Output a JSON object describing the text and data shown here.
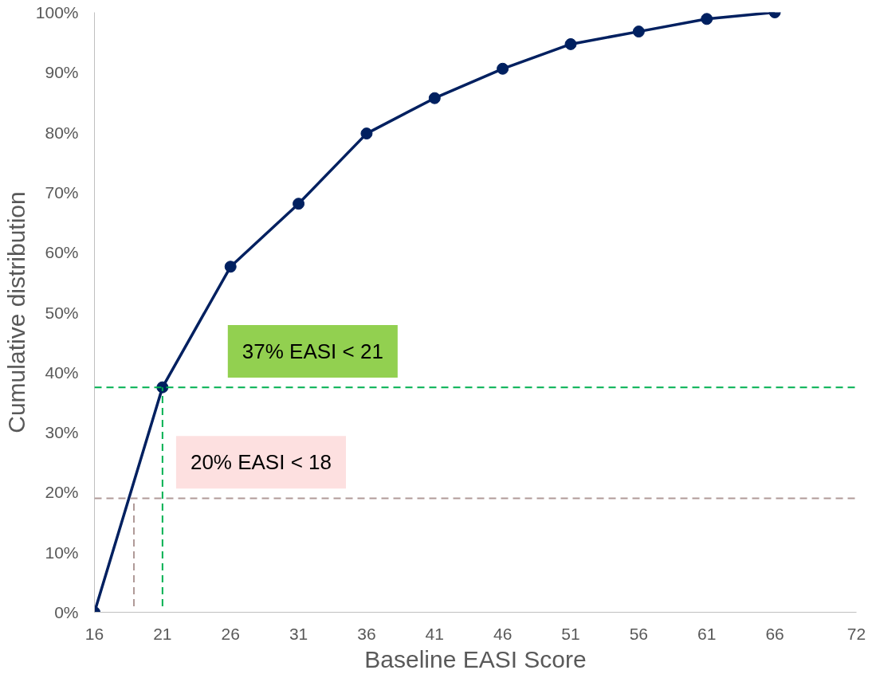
{
  "chart_data": {
    "type": "line",
    "xlabel": "Baseline EASI Score",
    "ylabel": "Cumulative distribution",
    "xlim": [
      16,
      72
    ],
    "xticks": [
      16,
      21,
      26,
      31,
      36,
      41,
      46,
      51,
      56,
      61,
      66,
      72
    ],
    "ylim": [
      0,
      100
    ],
    "yticks": [
      {
        "value": 0,
        "label": "0%"
      },
      {
        "value": 10,
        "label": "10%"
      },
      {
        "value": 20,
        "label": "20%"
      },
      {
        "value": 30,
        "label": "30%"
      },
      {
        "value": 40,
        "label": "40%"
      },
      {
        "value": 50,
        "label": "50%"
      },
      {
        "value": 60,
        "label": "60%"
      },
      {
        "value": 70,
        "label": "70%"
      },
      {
        "value": 80,
        "label": "80%"
      },
      {
        "value": 90,
        "label": "90%"
      },
      {
        "value": 100,
        "label": "100%"
      }
    ],
    "grid": false,
    "marker": "circle",
    "line_style": "solid",
    "series": [
      {
        "color": "#002060",
        "x": [
          16,
          21,
          26,
          31,
          36,
          41,
          46,
          51,
          56,
          61,
          66
        ],
        "values": [
          0,
          37.5,
          57.6,
          68.1,
          79.8,
          85.7,
          90.6,
          94.7,
          96.8,
          98.9,
          100
        ]
      },
      {
        "type": "line",
        "color": "#00b050",
        "marker": "none",
        "line_style": "dashed",
        "x": [
          21,
          21
        ],
        "values": [
          1,
          37.5
        ]
      },
      {
        "type": "line",
        "color": "#b09a98",
        "marker": "none",
        "line_style": "dashed",
        "x": [
          18.9,
          18.9
        ],
        "values": [
          1,
          19
        ]
      }
    ],
    "ref_lines": [
      {
        "axis": "y",
        "value": 37.5,
        "color": "#00b050",
        "line_style": "dashed"
      },
      {
        "axis": "y",
        "value": 19,
        "color": "#b09a98",
        "line_style": "dashed"
      }
    ],
    "annotations": [
      "37% EASI < 21",
      "20% EASI < 18"
    ]
  }
}
